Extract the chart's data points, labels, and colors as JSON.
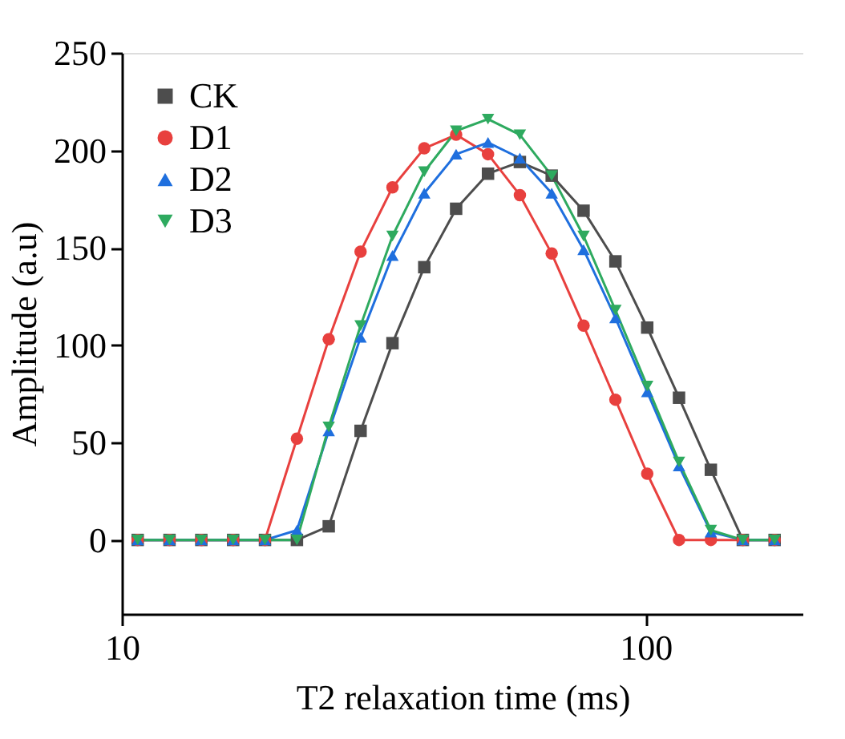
{
  "chart_data": {
    "type": "line",
    "xlabel": "T2 relaxation time (ms)",
    "ylabel": "Amplitude (a.u)",
    "x": [
      10.72,
      12.33,
      14.18,
      16.31,
      18.76,
      21.59,
      24.83,
      28.56,
      32.86,
      37.79,
      43.47,
      50.01,
      57.53,
      66.17,
      76.12,
      87.56,
      100.7,
      115.8,
      133.2,
      153.3,
      176.3
    ],
    "series": [
      {
        "name": "CK",
        "color": "#4d4d4d",
        "marker": "square",
        "values": [
          0,
          0,
          0,
          0,
          0,
          0,
          7,
          56,
          101,
          140,
          170,
          188,
          194,
          187,
          169,
          143,
          109,
          73,
          36,
          0,
          0
        ]
      },
      {
        "name": "D1",
        "color": "#e8403e",
        "marker": "circle",
        "values": [
          0,
          0,
          0,
          0,
          0,
          52,
          103,
          148,
          181,
          201,
          208,
          198,
          177,
          147,
          110,
          72,
          34,
          0,
          0,
          0,
          0
        ]
      },
      {
        "name": "D2",
        "color": "#1f6fde",
        "marker": "triangle",
        "values": [
          0,
          0,
          0,
          0,
          0,
          5,
          56,
          104,
          146,
          178,
          198,
          204,
          196,
          178,
          149,
          114,
          76,
          38,
          4,
          0,
          0
        ]
      },
      {
        "name": "D3",
        "color": "#2eaa5f",
        "marker": "triangle-down",
        "values": [
          0,
          0,
          0,
          0,
          0,
          0,
          58,
          110,
          156,
          189,
          210,
          216,
          208,
          187,
          156,
          118,
          79,
          40,
          5,
          0,
          0
        ]
      }
    ],
    "log": "x",
    "xlim": [
      10,
      200
    ],
    "xticks": [
      10,
      100
    ],
    "ylim": [
      -38,
      250
    ],
    "yticks": [
      0,
      50,
      100,
      150,
      200,
      250
    ],
    "grid": false,
    "legend": "top left",
    "line_style": "solid"
  }
}
